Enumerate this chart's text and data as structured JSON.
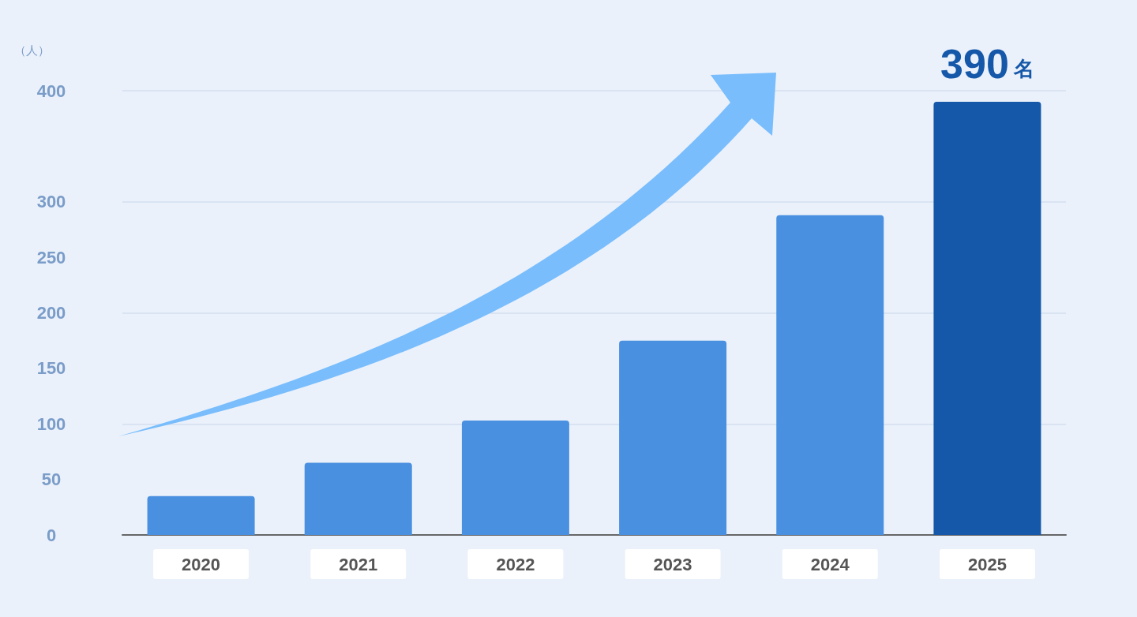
{
  "chart_data": {
    "type": "bar",
    "ylabel": "（人）",
    "categories": [
      "2020",
      "2021",
      "2022",
      "2023",
      "2024",
      "2025"
    ],
    "values": [
      35,
      65,
      103,
      175,
      288,
      390
    ],
    "colors": [
      "#4a90e0",
      "#4a90e0",
      "#4a90e0",
      "#4a90e0",
      "#4a90e0",
      "#1557a8"
    ],
    "value_labels": [
      null,
      null,
      null,
      null,
      null,
      "390名"
    ],
    "ylim": [
      0,
      400
    ],
    "yticks": [
      0,
      50,
      100,
      150,
      200,
      250,
      300,
      400
    ],
    "grid": "y"
  }
}
